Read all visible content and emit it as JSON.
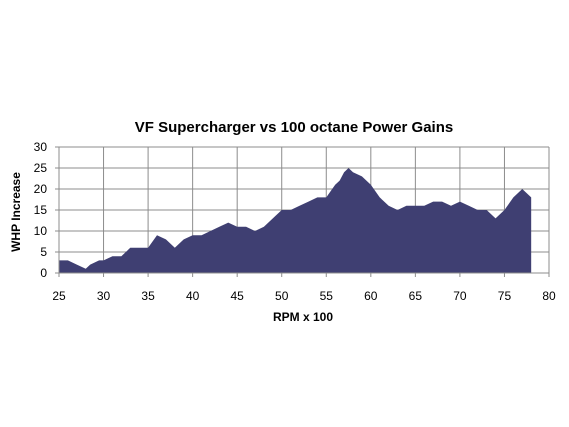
{
  "chart_data": {
    "type": "area",
    "title": "VF Supercharger  vs 100 octane Power Gains",
    "xlabel": "RPM x 100",
    "ylabel": "WHP Increase",
    "xlim": [
      25,
      80
    ],
    "ylim": [
      0,
      30
    ],
    "xticks": [
      25,
      30,
      35,
      40,
      45,
      50,
      55,
      60,
      65,
      70,
      75,
      80
    ],
    "yticks": [
      0,
      5,
      10,
      15,
      20,
      25,
      30
    ],
    "grid": true,
    "legend": "none",
    "series": [
      {
        "color": "#3f3f72",
        "x": [
          25,
          26,
          27,
          28,
          28.5,
          29.5,
          30,
          31,
          32,
          33,
          34,
          35,
          36,
          37,
          38,
          39,
          40,
          41,
          42,
          43,
          44,
          45,
          46,
          47,
          48,
          49,
          50,
          51,
          52,
          53,
          54,
          55,
          56,
          56.5,
          57,
          57.5,
          58,
          59,
          60,
          61,
          62,
          63,
          64,
          65,
          66,
          67,
          68,
          69,
          70,
          71,
          72,
          73,
          74,
          75,
          76,
          77,
          78
        ],
        "y": [
          3,
          3,
          2,
          1,
          2,
          3,
          3,
          4,
          4,
          6,
          6,
          6,
          9,
          8,
          6,
          8,
          9,
          9,
          10,
          11,
          12,
          11,
          11,
          10,
          11,
          13,
          15,
          15,
          16,
          17,
          18,
          18,
          21,
          22,
          24,
          25,
          24,
          23,
          21,
          18,
          16,
          15,
          16,
          16,
          16,
          17,
          17,
          16,
          17,
          16,
          15,
          15,
          13,
          15,
          18,
          20,
          18
        ]
      }
    ]
  }
}
